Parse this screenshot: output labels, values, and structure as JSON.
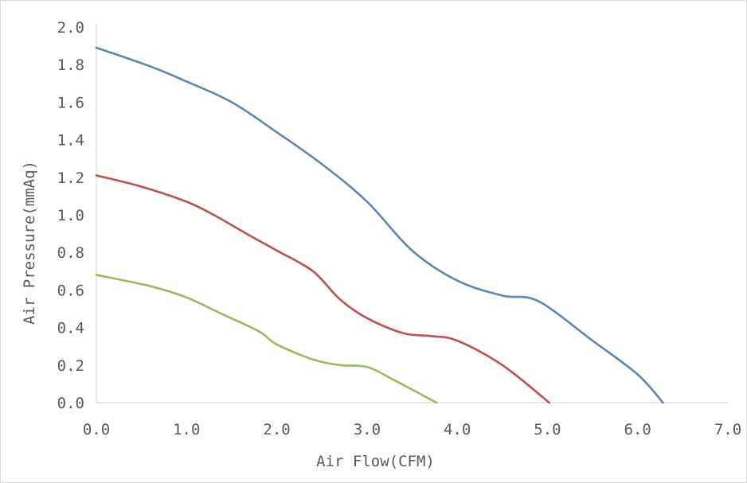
{
  "chart_data": {
    "type": "line",
    "title": "",
    "xlabel": "Air Flow(CFM)",
    "ylabel": "Air Pressure(mmAq)",
    "xlim": [
      0,
      7
    ],
    "ylim": [
      0,
      2
    ],
    "x_ticks": [
      "0.0",
      "1.0",
      "2.0",
      "3.0",
      "4.0",
      "5.0",
      "6.0",
      "7.0"
    ],
    "y_ticks": [
      "0.0",
      "0.2",
      "0.4",
      "0.6",
      "0.8",
      "1.0",
      "1.2",
      "1.4",
      "1.6",
      "1.8",
      "2.0"
    ],
    "grid": false,
    "legend": "none",
    "series": [
      {
        "color": "#5b87b6",
        "points": [
          [
            0.0,
            1.89
          ],
          [
            0.6,
            1.79
          ],
          [
            1.0,
            1.71
          ],
          [
            1.5,
            1.6
          ],
          [
            2.0,
            1.44
          ],
          [
            2.5,
            1.27
          ],
          [
            3.0,
            1.07
          ],
          [
            3.5,
            0.81
          ],
          [
            4.0,
            0.65
          ],
          [
            4.5,
            0.57
          ],
          [
            4.9,
            0.54
          ],
          [
            5.5,
            0.33
          ],
          [
            6.0,
            0.15
          ],
          [
            6.28,
            0.0
          ]
        ]
      },
      {
        "color": "#c0504d",
        "points": [
          [
            0.0,
            1.21
          ],
          [
            0.5,
            1.15
          ],
          [
            1.0,
            1.07
          ],
          [
            1.3,
            1.0
          ],
          [
            1.7,
            0.89
          ],
          [
            2.0,
            0.81
          ],
          [
            2.4,
            0.7
          ],
          [
            2.7,
            0.55
          ],
          [
            3.0,
            0.45
          ],
          [
            3.4,
            0.37
          ],
          [
            3.7,
            0.355
          ],
          [
            4.0,
            0.33
          ],
          [
            4.5,
            0.2
          ],
          [
            5.02,
            0.0
          ]
        ]
      },
      {
        "color": "#9bbb59",
        "points": [
          [
            0.0,
            0.68
          ],
          [
            0.6,
            0.62
          ],
          [
            1.0,
            0.56
          ],
          [
            1.4,
            0.47
          ],
          [
            1.8,
            0.38
          ],
          [
            2.0,
            0.31
          ],
          [
            2.4,
            0.23
          ],
          [
            2.7,
            0.2
          ],
          [
            3.0,
            0.19
          ],
          [
            3.3,
            0.12
          ],
          [
            3.77,
            0.0
          ]
        ]
      }
    ]
  }
}
